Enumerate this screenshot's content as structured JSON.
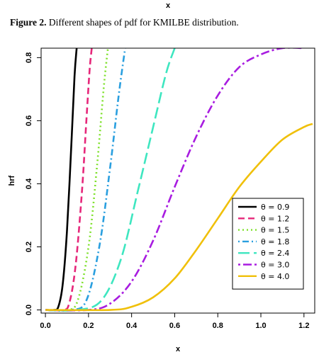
{
  "header_label": "x",
  "caption": {
    "prefix": "Figure 2.",
    "text": " Different shapes of pdf for KMILBE distribution."
  },
  "chart_data": {
    "type": "line",
    "title": "",
    "xlabel": "x",
    "ylabel": "hrf",
    "xlim": [
      -0.02,
      1.25
    ],
    "ylim": [
      -0.01,
      0.83
    ],
    "xticks": [
      "0.0",
      "0.2",
      "0.4",
      "0.6",
      "0.8",
      "1.0",
      "1.2"
    ],
    "yticks": [
      "0.0",
      "0.2",
      "0.4",
      "0.6",
      "0.8"
    ],
    "legend_position": "bottom-right",
    "series": [
      {
        "name": "θ = 0.9",
        "color": "#000000",
        "dash": "solid",
        "x": [
          0.0,
          0.04,
          0.06,
          0.08,
          0.1,
          0.12,
          0.135,
          0.145
        ],
        "y": [
          0.0,
          0.0,
          0.01,
          0.08,
          0.25,
          0.52,
          0.74,
          0.83
        ]
      },
      {
        "name": "θ = 1.2",
        "color": "#e6277a",
        "dash": "dashed",
        "x": [
          0.0,
          0.08,
          0.11,
          0.14,
          0.17,
          0.19,
          0.205,
          0.215
        ],
        "y": [
          0.0,
          0.0,
          0.02,
          0.14,
          0.38,
          0.6,
          0.76,
          0.83
        ]
      },
      {
        "name": "θ = 1.5",
        "color": "#7ee12a",
        "dash": "dotted",
        "x": [
          0.0,
          0.1,
          0.15,
          0.2,
          0.24,
          0.27,
          0.29
        ],
        "y": [
          0.0,
          0.0,
          0.03,
          0.2,
          0.46,
          0.7,
          0.83
        ]
      },
      {
        "name": "θ = 1.8",
        "color": "#2a9fdf",
        "dash": "dotdash",
        "x": [
          0.0,
          0.12,
          0.19,
          0.25,
          0.3,
          0.34,
          0.37
        ],
        "y": [
          0.0,
          0.0,
          0.03,
          0.2,
          0.45,
          0.68,
          0.83
        ]
      },
      {
        "name": "θ = 2.4",
        "color": "#3ee6c0",
        "dash": "longdash",
        "x": [
          0.0,
          0.15,
          0.26,
          0.35,
          0.43,
          0.5,
          0.56,
          0.6
        ],
        "y": [
          0.0,
          0.0,
          0.03,
          0.16,
          0.38,
          0.58,
          0.75,
          0.83
        ]
      },
      {
        "name": "θ = 3.0",
        "color": "#a81ce0",
        "dash": "twodash",
        "x": [
          0.0,
          0.2,
          0.3,
          0.4,
          0.5,
          0.6,
          0.7,
          0.8,
          0.9,
          1.0,
          1.1,
          1.2
        ],
        "y": [
          0.0,
          0.0,
          0.02,
          0.09,
          0.22,
          0.39,
          0.55,
          0.68,
          0.77,
          0.81,
          0.83,
          0.83
        ]
      },
      {
        "name": "θ = 4.0",
        "color": "#f0c00a",
        "dash": "solid",
        "x": [
          0.0,
          0.3,
          0.4,
          0.5,
          0.6,
          0.7,
          0.8,
          0.9,
          1.0,
          1.1,
          1.2,
          1.24
        ],
        "y": [
          0.0,
          0.0,
          0.01,
          0.04,
          0.1,
          0.19,
          0.29,
          0.39,
          0.47,
          0.54,
          0.58,
          0.59
        ]
      }
    ]
  }
}
